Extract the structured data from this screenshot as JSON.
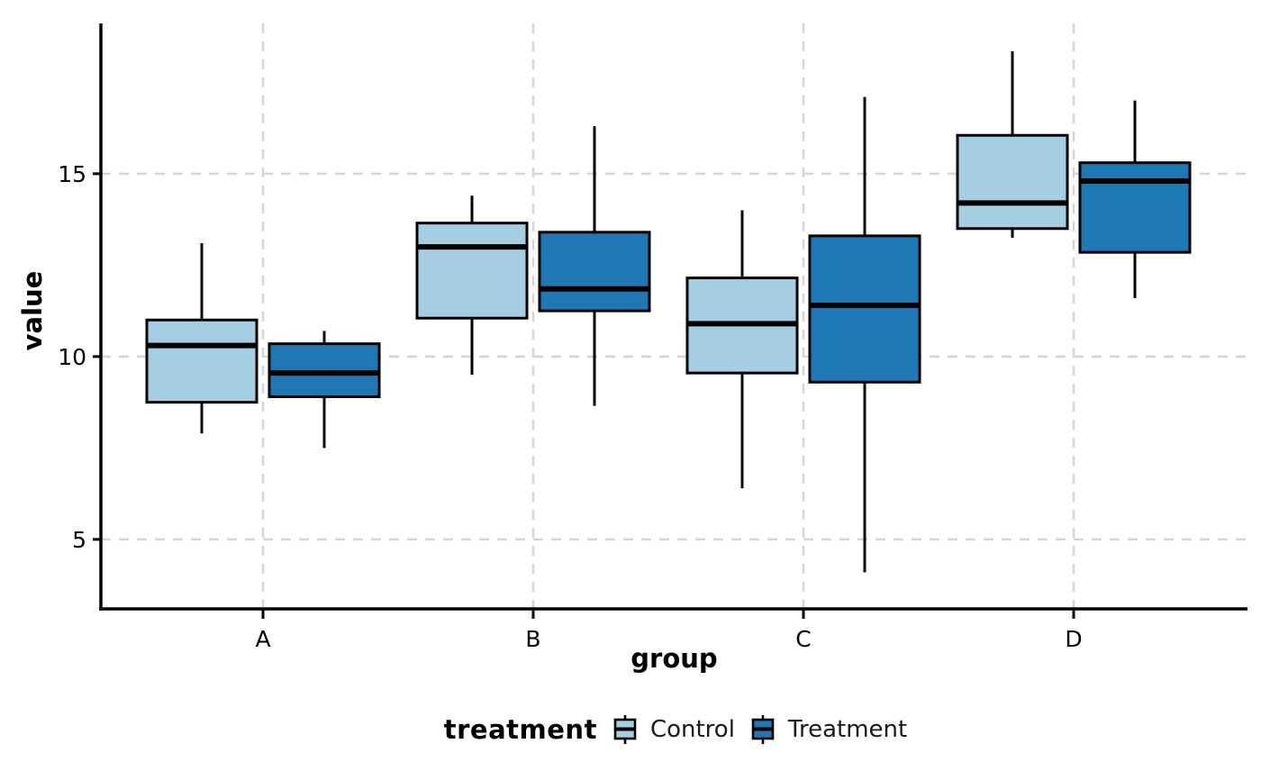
{
  "chart_data": {
    "type": "boxplot",
    "title": "",
    "xlabel": "group",
    "ylabel": "value",
    "categories": [
      "A",
      "B",
      "C",
      "D"
    ],
    "y_ticks": [
      5,
      10,
      15
    ],
    "ylim": [
      3.1,
      19.11
    ],
    "grid": {
      "style": "dashed",
      "color": "#D5D5D5",
      "x_major": true,
      "y_major": true
    },
    "axis_color": "#000000",
    "legend": {
      "title": "treatment",
      "position": "bottom",
      "entries": [
        {
          "label": "Control",
          "color": "#A6CEE3"
        },
        {
          "label": "Treatment",
          "color": "#1F78B4"
        }
      ]
    },
    "series": [
      {
        "name": "Control",
        "color": "#A6CEE3",
        "boxes": [
          {
            "category": "A",
            "whisker_low": 7.9,
            "q1": 8.75,
            "median": 10.3,
            "q3": 11.0,
            "whisker_high": 13.1
          },
          {
            "category": "B",
            "whisker_low": 9.5,
            "q1": 11.05,
            "median": 13.0,
            "q3": 13.65,
            "whisker_high": 14.4
          },
          {
            "category": "C",
            "whisker_low": 6.4,
            "q1": 9.55,
            "median": 10.9,
            "q3": 12.15,
            "whisker_high": 14.0
          },
          {
            "category": "D",
            "whisker_low": 13.25,
            "q1": 13.5,
            "median": 14.2,
            "q3": 16.05,
            "whisker_high": 18.35
          }
        ]
      },
      {
        "name": "Treatment",
        "color": "#1F78B4",
        "boxes": [
          {
            "category": "A",
            "whisker_low": 7.5,
            "q1": 8.9,
            "median": 9.55,
            "q3": 10.35,
            "whisker_high": 10.7
          },
          {
            "category": "B",
            "whisker_low": 8.65,
            "q1": 11.25,
            "median": 11.85,
            "q3": 13.4,
            "whisker_high": 16.3
          },
          {
            "category": "C",
            "whisker_low": 4.1,
            "q1": 9.3,
            "median": 11.4,
            "q3": 13.3,
            "whisker_high": 17.1
          },
          {
            "category": "D",
            "whisker_low": 11.6,
            "q1": 12.85,
            "median": 14.8,
            "q3": 15.3,
            "whisker_high": 17.0
          }
        ]
      }
    ]
  }
}
